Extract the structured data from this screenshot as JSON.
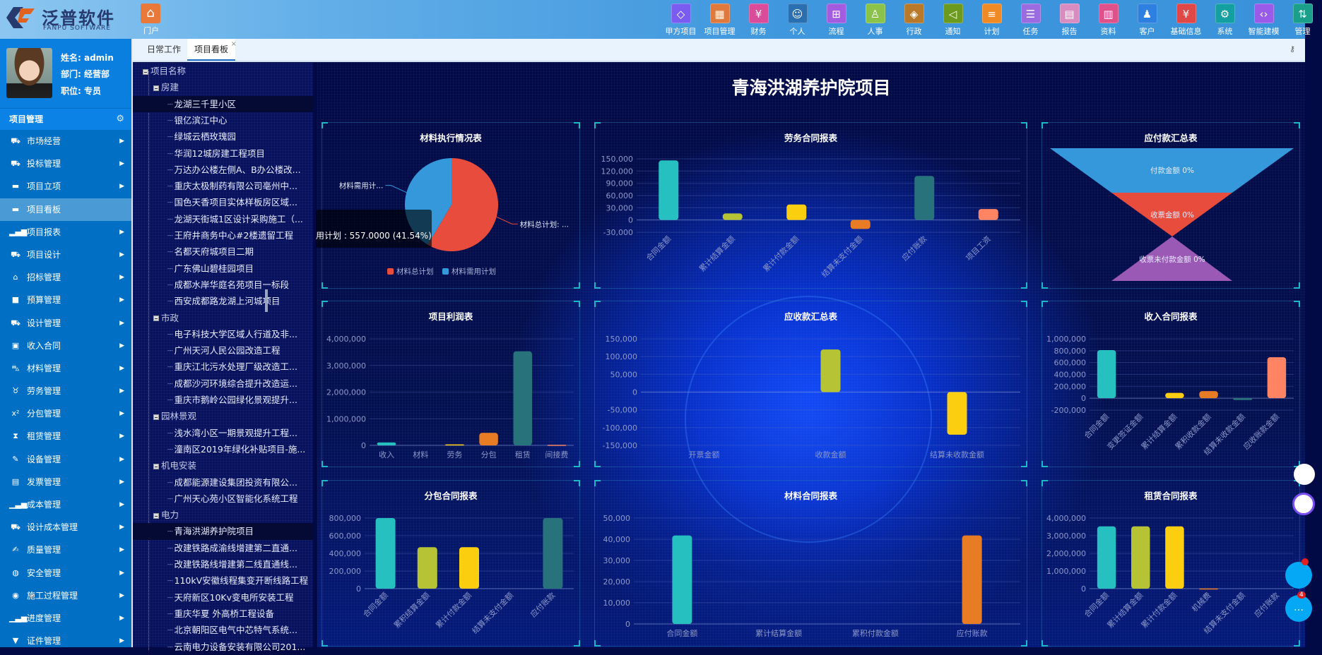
{
  "app": {
    "logo_cn": "泛普软件",
    "logo_en": "FANPU SOFTWARE",
    "portal_label": "门户"
  },
  "top_nav": [
    {
      "label": "甲方项目",
      "icon": "grid-diamond-icon",
      "glyph": "◇",
      "color": "#7b5cf0"
    },
    {
      "label": "项目管理",
      "icon": "grid-icon",
      "glyph": "▦",
      "color": "#e07a3c"
    },
    {
      "label": "财务",
      "icon": "yen-icon",
      "glyph": "¥",
      "color": "#d94c9a"
    },
    {
      "label": "个人",
      "icon": "user-icon",
      "glyph": "☺",
      "color": "#2a6fb0"
    },
    {
      "label": "流程",
      "icon": "flow-icon",
      "glyph": "⊞",
      "color": "#a35ce0"
    },
    {
      "label": "人事",
      "icon": "person-icon",
      "glyph": "♙",
      "color": "#8bc34a"
    },
    {
      "label": "行政",
      "icon": "layers-icon",
      "glyph": "◈",
      "color": "#b8792a"
    },
    {
      "label": "通知",
      "icon": "speaker-icon",
      "glyph": "◁",
      "color": "#6b9a1e"
    },
    {
      "label": "计划",
      "icon": "sliders-icon",
      "glyph": "≡",
      "color": "#f08a24"
    },
    {
      "label": "任务",
      "icon": "task-icon",
      "glyph": "☰",
      "color": "#9b6ce0"
    },
    {
      "label": "报告",
      "icon": "report-icon",
      "glyph": "▤",
      "color": "#d98cc0"
    },
    {
      "label": "资料",
      "icon": "document-icon",
      "glyph": "▥",
      "color": "#e0508a"
    },
    {
      "label": "客户",
      "icon": "customer-icon",
      "glyph": "♟",
      "color": "#2d7fe0"
    },
    {
      "label": "基础信息",
      "icon": "info-doc-icon",
      "glyph": "¥",
      "color": "#e04848"
    },
    {
      "label": "系统",
      "icon": "gear-icon",
      "glyph": "⚙",
      "color": "#14a0a0"
    },
    {
      "label": "智能建模",
      "icon": "code-icon",
      "glyph": "‹›",
      "color": "#9a5ce8"
    },
    {
      "label": "管理",
      "icon": "sort-icon",
      "glyph": "⇅",
      "color": "#1aa08a"
    }
  ],
  "profile": {
    "name": "姓名: admin",
    "dept": "部门: 经营部",
    "title": "职位: 专员"
  },
  "menu": {
    "header": "项目管理",
    "items": [
      {
        "label": "市场经营",
        "glyph": "⛟"
      },
      {
        "label": "投标管理",
        "glyph": "⛟"
      },
      {
        "label": "项目立项",
        "glyph": "▬"
      },
      {
        "label": "项目看板",
        "glyph": "▬",
        "active": true
      },
      {
        "label": "项目报表",
        "glyph": "▂▄▆"
      },
      {
        "label": "项目设计",
        "glyph": "⛟"
      },
      {
        "label": "招标管理",
        "glyph": "⌂"
      },
      {
        "label": "预算管理",
        "glyph": "■"
      },
      {
        "label": "设计管理",
        "glyph": "⛟"
      },
      {
        "label": "收入合同",
        "glyph": "▣"
      },
      {
        "label": "材料管理",
        "glyph": "⛍"
      },
      {
        "label": "劳务管理",
        "glyph": "♉"
      },
      {
        "label": "分包管理",
        "glyph": "x²"
      },
      {
        "label": "租赁管理",
        "glyph": "⧗"
      },
      {
        "label": "设备管理",
        "glyph": "✎"
      },
      {
        "label": "发票管理",
        "glyph": "▤"
      },
      {
        "label": "成本管理",
        "glyph": "▁▃▅"
      },
      {
        "label": "设计成本管理",
        "glyph": "⛟"
      },
      {
        "label": "质量管理",
        "glyph": "✍"
      },
      {
        "label": "安全管理",
        "glyph": "◍"
      },
      {
        "label": "施工过程管理",
        "glyph": "◉"
      },
      {
        "label": "进度管理",
        "glyph": "▁▃▅"
      },
      {
        "label": "证件管理",
        "glyph": "▼"
      }
    ]
  },
  "tabs": [
    {
      "label": "日常工作"
    },
    {
      "label": "项目看板",
      "active": true
    }
  ],
  "tab_close": "×",
  "tree": {
    "root": "项目名称",
    "groups": [
      {
        "label": "房建",
        "items": [
          "龙湖三千里小区",
          "银亿滨江中心",
          "绿城云栖玫瑰园",
          "华润12城房建工程项目",
          "万达办公楼左侧A、B办公楼改...",
          "重庆太极制药有限公司亳州中...",
          "国色天香项目实体样板房区域...",
          "龙湖天街城1区设计采购施工（...",
          "王府井商务中心#2楼遗留工程",
          "名都天府城项目二期",
          "广东佛山碧桂园项目",
          "成都水岸华庭名苑项目一标段",
          "西安成都路龙湖上河城项目"
        ]
      },
      {
        "label": "市政",
        "items": [
          "电子科技大学区域人行道及非...",
          "广州天河人民公园改造工程",
          "重庆江北污水处理厂级改造工...",
          "成都沙河环境综合提升改造运...",
          "重庆市鹅岭公园绿化景观提升..."
        ]
      },
      {
        "label": "园林景观",
        "items": [
          "浅水湾小区一期景观提升工程...",
          "潼南区2019年绿化补贴项目-施..."
        ]
      },
      {
        "label": "机电安装",
        "items": [
          "成都能源建设集团投资有限公...",
          "广州天心苑小区智能化系统工程"
        ]
      },
      {
        "label": "电力",
        "items": [
          "青海洪湖养护院项目",
          "改建铁路成渝线增建第二直通...",
          "改建铁路线增建第二线直通线...",
          "110kV安徽线程集变开断线路工程",
          "天府新区10Kv变电所安装工程",
          "重庆华夏 外高桥工程设备",
          "北京朝阳区电气中芯特气系统...",
          "云南电力设备安装有限公司201..."
        ]
      }
    ],
    "selected": [
      "龙湖三千里小区",
      "青海洪湖养护院项目"
    ]
  },
  "dashboard": {
    "title": "青海洪湖养护院项目",
    "tooltip": "用计划 : 557.0000 (41.54%)"
  },
  "palette": [
    "#26c0c0",
    "#b5c334",
    "#fcce10",
    "#e87c25",
    "#27727b",
    "#fe8463"
  ],
  "chart_data": [
    {
      "type": "pie",
      "title": "材料执行情况表",
      "slices": [
        {
          "name": "材料总计划",
          "value": 784,
          "color": "#e74c3c",
          "label": "材料总计划: ..."
        },
        {
          "name": "材料需用计划",
          "value": 557,
          "percent": 41.54,
          "color": "#3498db",
          "label": "材料需用计..."
        }
      ],
      "legend": [
        "材料总计划",
        "材料需用计划"
      ],
      "legend_position": "bottom"
    },
    {
      "type": "bar",
      "title": "劳务合同报表",
      "categories": [
        "合同金额",
        "累计结算金额",
        "累计付款金额",
        "结算未支付金额",
        "应付账款",
        "项目工资"
      ],
      "values": [
        146000,
        16000,
        38000,
        -22000,
        108000,
        27000
      ],
      "ylim": [
        -30000,
        150000
      ],
      "yticks": [
        -30000,
        0,
        30000,
        60000,
        90000,
        120000,
        150000
      ],
      "label_rotate": 45,
      "grid": true
    },
    {
      "type": "funnel",
      "title": "应付款汇总表",
      "stages": [
        {
          "name": "付款金额",
          "percent": 0,
          "label": "付款金额 0%",
          "color": "#3498db"
        },
        {
          "name": "收票金额",
          "percent": 0,
          "label": "收票金额 0%",
          "color": "#e74c3c"
        },
        {
          "name": "收票未付款金额",
          "percent": 0,
          "label": "收票未付款金额 0%",
          "color": "#9b59b6"
        }
      ]
    },
    {
      "type": "bar",
      "title": "项目利润表",
      "categories": [
        "收入",
        "材料",
        "劳务",
        "分包",
        "租赁",
        "间接费"
      ],
      "values": [
        110000,
        0,
        38000,
        470000,
        3530000,
        20000
      ],
      "ylim": [
        0,
        4000000
      ],
      "yticks": [
        0,
        1000000,
        2000000,
        3000000,
        4000000
      ],
      "label_rotate": 0,
      "grid": true
    },
    {
      "type": "bar",
      "title": "应收款汇总表",
      "categories": [
        "开票金额",
        "收款金额",
        "结算未收款金额"
      ],
      "values": [
        0,
        120000,
        -120000
      ],
      "ylim": [
        -150000,
        150000
      ],
      "yticks": [
        -150000,
        -100000,
        -50000,
        0,
        50000,
        100000,
        150000
      ],
      "label_rotate": 0,
      "grid": true
    },
    {
      "type": "bar",
      "title": "收入合同报表",
      "categories": [
        "合同金额",
        "变更签证金额",
        "累计结算金额",
        "累积收款金额",
        "结算未收款金额",
        "应收账款金额"
      ],
      "values": [
        810000,
        0,
        90000,
        120000,
        -30000,
        690000
      ],
      "ylim": [
        -200000,
        1000000
      ],
      "yticks": [
        -200000,
        0,
        200000,
        400000,
        600000,
        800000,
        1000000
      ],
      "label_rotate": 45,
      "grid": true
    },
    {
      "type": "bar",
      "title": "分包合同报表",
      "categories": [
        "合同金额",
        "累积结算金额",
        "累计付款金额",
        "结算未支付金额",
        "应付账款"
      ],
      "values": [
        800000,
        470000,
        470000,
        0,
        800000
      ],
      "ylim": [
        0,
        800000
      ],
      "yticks": [
        0,
        200000,
        400000,
        600000,
        800000
      ],
      "label_rotate": 45,
      "grid": true
    },
    {
      "type": "bar",
      "title": "材料合同报表",
      "categories": [
        "合同金额",
        "累计结算金额",
        "累积付款金额",
        "应付账款"
      ],
      "values": [
        41800,
        0,
        0,
        41800
      ],
      "ylim": [
        0,
        50000
      ],
      "yticks": [
        0,
        10000,
        20000,
        30000,
        40000,
        50000
      ],
      "label_rotate": 0,
      "grid": true
    },
    {
      "type": "bar",
      "title": "租赁合同报表",
      "categories": [
        "合同金额",
        "累计结算金额",
        "累计付款金额",
        "机械费",
        "结算未支付金额",
        "应付账款"
      ],
      "values": [
        3530000,
        3530000,
        3530000,
        10000,
        0,
        0
      ],
      "ylim": [
        0,
        4000000
      ],
      "yticks": [
        0,
        1000000,
        2000000,
        3000000,
        4000000
      ],
      "label_rotate": 45,
      "grid": true
    }
  ],
  "floating": {
    "chat_badge": "4"
  }
}
